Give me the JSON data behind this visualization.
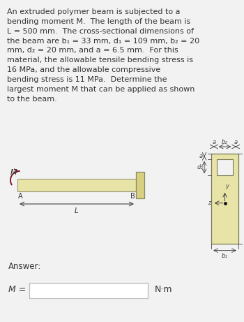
{
  "bg_color": "#f2f2f2",
  "text_color": "#333333",
  "dim_color": "#444444",
  "problem_text": "An extruded polymer beam is subjected to a\nbending moment M.  The length of the beam is\nL = 500 mm.  The cross-sectional dimensions of\nthe beam are b₁ = 33 mm, d₁ = 109 mm, b₂ = 20\nmm, d₂ = 20 mm, and a = 6.5 mm.  For this\nmaterial, the allowable tensile bending stress is\n16 MPa, and the allowable compressive\nbending stress is 11 MPa.  Determine the\nlargest moment M that can be applied as shown\nto the beam.",
  "answer_label": "Answer:",
  "M_label": "M =",
  "Nm_label": "N·m",
  "beam_color": "#e8e4a8",
  "beam_edge": "#999977",
  "cap_color": "#d8d080",
  "cap_edge": "#888866",
  "cross_color": "#e8e4a8",
  "cross_edge": "#777755",
  "moment_color": "#7a1a2a",
  "fig_width": 3.5,
  "fig_height": 4.61,
  "dpi": 100
}
